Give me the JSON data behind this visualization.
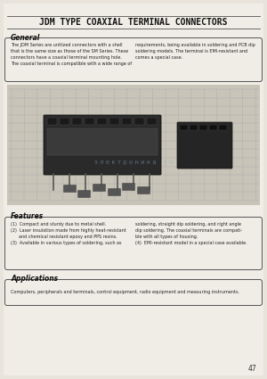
{
  "bg_color": "#e8e4dc",
  "page_bg": "#dedad2",
  "title": "JDM TYPE COAXIAL TERMINAL CONNECTORS",
  "title_fontsize": 7.0,
  "page_number": "47",
  "general_heading": "General",
  "general_text_left": "The JDM Series are unitized connectors with a shell\nthat is the same size as those of the SM Series. These\nconnectors have a coaxial terminal mounting hole.\nThe coaxial terminal is compatible with a wide range of",
  "general_text_right": "requirements, being available in soldering and PCB dip\nsoldering models. The terminal is EMI-resistant and\ncomes a special case.",
  "features_heading": "Features",
  "features_text_left": "(1)  Compact and sturdy due to metal shell.\n(2)  Laser insulation made from highly heat-resistant\n      and chemical resistant epoxy and PPS resins.\n(3)  Available in various types of soldering, such as",
  "features_text_right": "soldering, straight dip soldering, and right angle\ndip soldering. The coaxial terminals are compati-\nble with all types of housing.\n(4)  EMI-resistant model in a special case available.",
  "applications_heading": "Applications",
  "applications_text": "Computers, peripherals and terminals, control equipment, radio equipment and measuring instruments.",
  "watermark_text": "э л е к т р о н и к а  . r u"
}
